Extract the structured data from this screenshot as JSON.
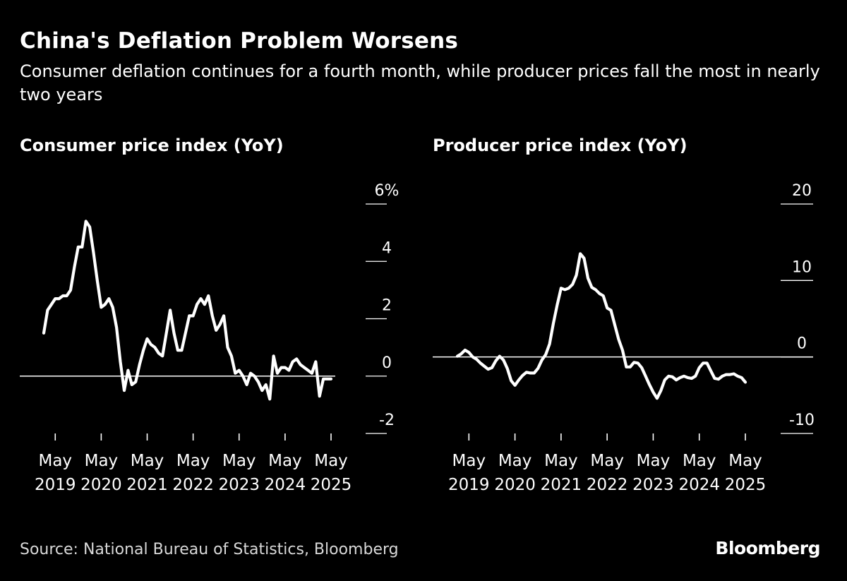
{
  "title": "China's Deflation Problem Worsens",
  "subtitle": "Consumer deflation continues for a fourth month, while producer prices fall the most in nearly two years",
  "source": "Source: National Bureau of Statistics, Bloomberg",
  "brand": "Bloomberg",
  "colors": {
    "background": "#000000",
    "line": "#ffffff"
  },
  "chart_data": [
    {
      "type": "line",
      "title": "Consumer price index (YoY)",
      "xlabel": "",
      "ylabel": "",
      "x_range": [
        "2019-02",
        "2025-05"
      ],
      "ylim": [
        -2,
        6
      ],
      "y_ticks": [
        "6%",
        "4",
        "2",
        "0",
        "-2"
      ],
      "x_ticks": [
        "May 2019",
        "May 2020",
        "May 2021",
        "May 2022",
        "May 2023",
        "May 2024",
        "May 2025"
      ],
      "reference_line": 0,
      "grid": false,
      "series": [
        {
          "x": [
            "2019-02",
            "2019-03",
            "2019-04",
            "2019-05",
            "2019-06",
            "2019-07",
            "2019-08",
            "2019-09",
            "2019-10",
            "2019-11",
            "2019-12",
            "2020-01",
            "2020-02",
            "2020-03",
            "2020-04",
            "2020-05",
            "2020-06",
            "2020-07",
            "2020-08",
            "2020-09",
            "2020-10",
            "2020-11",
            "2020-12",
            "2021-01",
            "2021-02",
            "2021-03",
            "2021-04",
            "2021-05",
            "2021-06",
            "2021-07",
            "2021-08",
            "2021-09",
            "2021-10",
            "2021-11",
            "2021-12",
            "2022-01",
            "2022-02",
            "2022-03",
            "2022-04",
            "2022-05",
            "2022-06",
            "2022-07",
            "2022-08",
            "2022-09",
            "2022-10",
            "2022-11",
            "2022-12",
            "2023-01",
            "2023-02",
            "2023-03",
            "2023-04",
            "2023-05",
            "2023-06",
            "2023-07",
            "2023-08",
            "2023-09",
            "2023-10",
            "2023-11",
            "2023-12",
            "2024-01",
            "2024-02",
            "2024-03",
            "2024-04",
            "2024-05",
            "2024-06",
            "2024-07",
            "2024-08",
            "2024-09",
            "2024-10",
            "2024-11",
            "2024-12",
            "2025-01",
            "2025-02",
            "2025-03",
            "2025-04",
            "2025-05"
          ],
          "y": [
            1.5,
            2.3,
            2.5,
            2.7,
            2.7,
            2.8,
            2.8,
            3.0,
            3.8,
            4.5,
            4.5,
            5.4,
            5.2,
            4.3,
            3.3,
            2.4,
            2.5,
            2.7,
            2.4,
            1.7,
            0.5,
            -0.5,
            0.2,
            -0.3,
            -0.2,
            0.4,
            0.9,
            1.3,
            1.1,
            1.0,
            0.8,
            0.7,
            1.5,
            2.3,
            1.5,
            0.9,
            0.9,
            1.5,
            2.1,
            2.1,
            2.5,
            2.7,
            2.5,
            2.8,
            2.1,
            1.6,
            1.8,
            2.1,
            1.0,
            0.7,
            0.1,
            0.2,
            0.0,
            -0.3,
            0.1,
            0.0,
            -0.2,
            -0.5,
            -0.3,
            -0.8,
            0.7,
            0.1,
            0.3,
            0.3,
            0.2,
            0.5,
            0.6,
            0.4,
            0.3,
            0.2,
            0.1,
            0.5,
            -0.7,
            -0.1,
            -0.1,
            -0.1
          ]
        }
      ]
    },
    {
      "type": "line",
      "title": "Producer price index (YoY)",
      "xlabel": "",
      "ylabel": "",
      "x_range": [
        "2019-02",
        "2025-05"
      ],
      "ylim": [
        -10,
        20
      ],
      "y_ticks": [
        "20",
        "10",
        "0",
        "-10"
      ],
      "x_ticks": [
        "May 2019",
        "May 2020",
        "May 2021",
        "May 2022",
        "May 2023",
        "May 2024",
        "May 2025"
      ],
      "reference_line": 0,
      "grid": false,
      "series": [
        {
          "x": [
            "2019-02",
            "2019-03",
            "2019-04",
            "2019-05",
            "2019-06",
            "2019-07",
            "2019-08",
            "2019-09",
            "2019-10",
            "2019-11",
            "2019-12",
            "2020-01",
            "2020-02",
            "2020-03",
            "2020-04",
            "2020-05",
            "2020-06",
            "2020-07",
            "2020-08",
            "2020-09",
            "2020-10",
            "2020-11",
            "2020-12",
            "2021-01",
            "2021-02",
            "2021-03",
            "2021-04",
            "2021-05",
            "2021-06",
            "2021-07",
            "2021-08",
            "2021-09",
            "2021-10",
            "2021-11",
            "2021-12",
            "2022-01",
            "2022-02",
            "2022-03",
            "2022-04",
            "2022-05",
            "2022-06",
            "2022-07",
            "2022-08",
            "2022-09",
            "2022-10",
            "2022-11",
            "2022-12",
            "2023-01",
            "2023-02",
            "2023-03",
            "2023-04",
            "2023-05",
            "2023-06",
            "2023-07",
            "2023-08",
            "2023-09",
            "2023-10",
            "2023-11",
            "2023-12",
            "2024-01",
            "2024-02",
            "2024-03",
            "2024-04",
            "2024-05",
            "2024-06",
            "2024-07",
            "2024-08",
            "2024-09",
            "2024-10",
            "2024-11",
            "2024-12",
            "2025-01",
            "2025-02",
            "2025-03",
            "2025-04",
            "2025-05"
          ],
          "y": [
            0.1,
            0.4,
            0.9,
            0.6,
            0.0,
            -0.3,
            -0.8,
            -1.2,
            -1.6,
            -1.4,
            -0.5,
            0.1,
            -0.4,
            -1.5,
            -3.1,
            -3.7,
            -3.0,
            -2.4,
            -2.0,
            -2.1,
            -2.1,
            -1.5,
            -0.4,
            0.3,
            1.7,
            4.4,
            6.8,
            9.0,
            8.8,
            9.0,
            9.5,
            10.7,
            13.5,
            12.9,
            10.3,
            9.1,
            8.8,
            8.3,
            8.0,
            6.4,
            6.1,
            4.2,
            2.3,
            0.9,
            -1.3,
            -1.3,
            -0.7,
            -0.8,
            -1.4,
            -2.5,
            -3.6,
            -4.6,
            -5.4,
            -4.4,
            -3.0,
            -2.5,
            -2.6,
            -3.0,
            -2.7,
            -2.5,
            -2.7,
            -2.8,
            -2.5,
            -1.4,
            -0.8,
            -0.8,
            -1.8,
            -2.8,
            -2.9,
            -2.5,
            -2.3,
            -2.3,
            -2.2,
            -2.5,
            -2.7,
            -3.3
          ]
        }
      ]
    }
  ]
}
